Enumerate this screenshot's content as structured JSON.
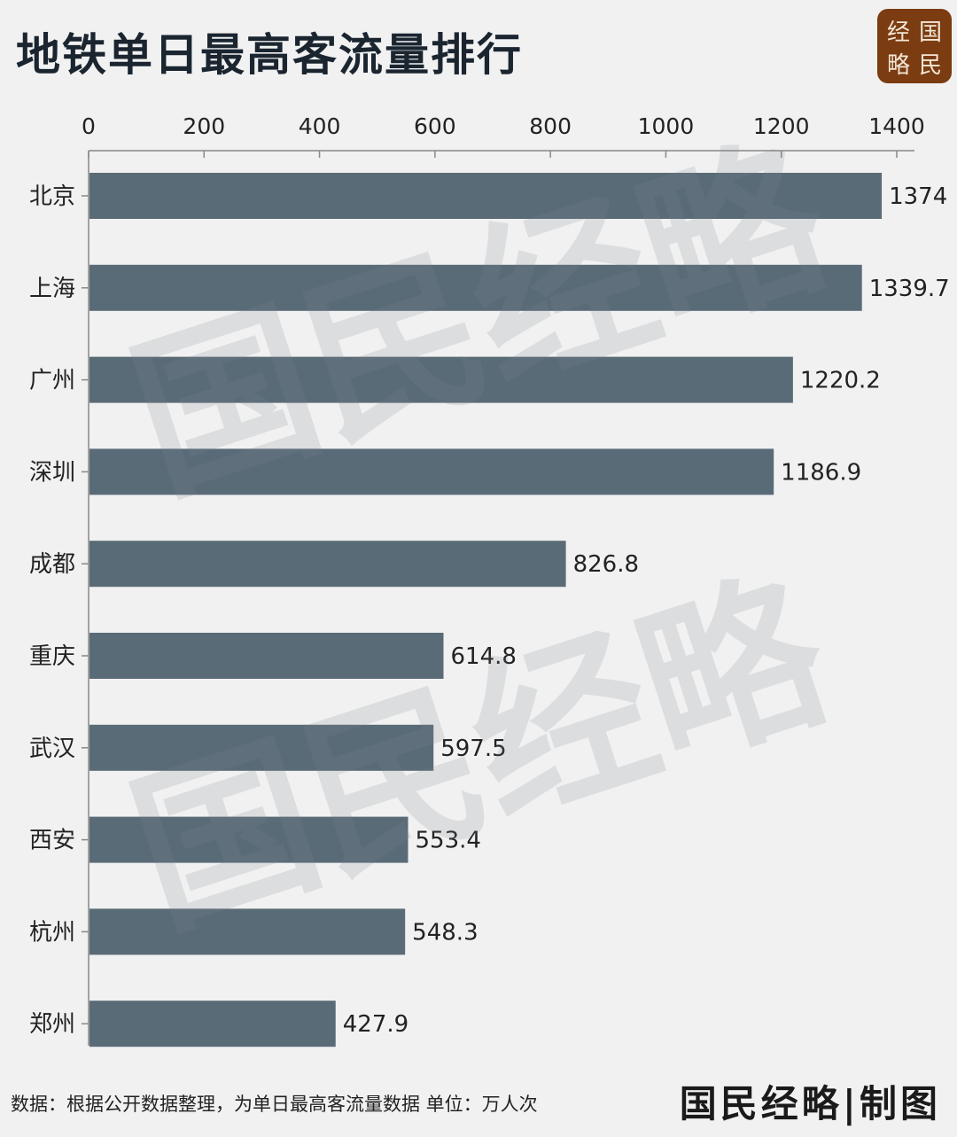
{
  "title": "地铁单日最高客流量排行",
  "logo": {
    "chars": [
      "经",
      "国",
      "略",
      "民"
    ]
  },
  "watermark": "国民经略",
  "footer": {
    "note": "数据：根据公开数据整理，为单日最高客流量数据 单位：万人次",
    "brand": "国民经略|制图"
  },
  "colors": {
    "bar": "#5a6b78",
    "axis": "#888888",
    "text": "#222222",
    "background": "#f1f1f1"
  },
  "chart_data": {
    "type": "bar",
    "orientation": "horizontal",
    "categories": [
      "北京",
      "上海",
      "广州",
      "深圳",
      "成都",
      "重庆",
      "武汉",
      "西安",
      "杭州",
      "郑州"
    ],
    "values": [
      1374,
      1339.7,
      1220.2,
      1186.9,
      826.8,
      614.8,
      597.5,
      553.4,
      548.3,
      427.9
    ],
    "value_labels": [
      "1374",
      "1339.7",
      "1220.2",
      "1186.9",
      "826.8",
      "614.8",
      "597.5",
      "553.4",
      "548.3",
      "427.9"
    ],
    "xlim": [
      0,
      1400
    ],
    "xticks": [
      0,
      200,
      400,
      600,
      800,
      1000,
      1200,
      1400
    ],
    "xtick_labels": [
      "0",
      "200",
      "400",
      "600",
      "800",
      "1000",
      "1200",
      "1400"
    ],
    "axis_position": "top",
    "grid": false,
    "legend": "none"
  }
}
